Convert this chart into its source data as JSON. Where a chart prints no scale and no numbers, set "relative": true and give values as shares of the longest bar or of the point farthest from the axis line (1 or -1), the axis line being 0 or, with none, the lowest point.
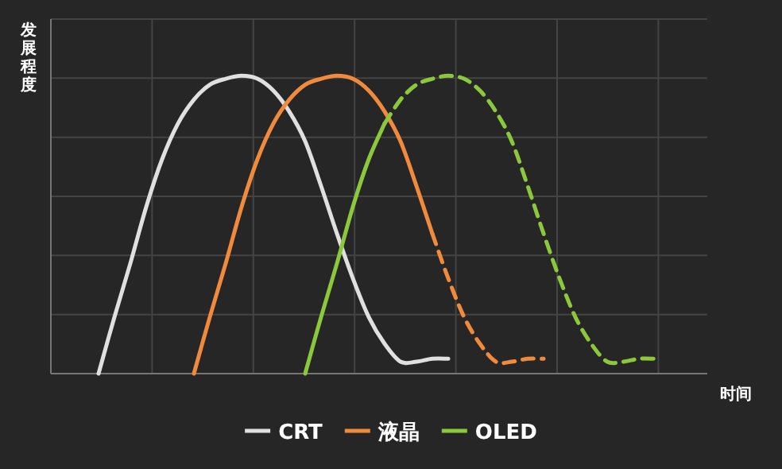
{
  "chart_data": {
    "type": "line",
    "relative": true,
    "ylabel": "发展程度",
    "xlabel": "时间",
    "grid": true,
    "legend": "bottom",
    "marker": "none",
    "categories": [
      null,
      null,
      null,
      null,
      null,
      null,
      null,
      null,
      null,
      null,
      null,
      null,
      null,
      null,
      null,
      null,
      null,
      null,
      null,
      null,
      null,
      null,
      null,
      null,
      null,
      null,
      null,
      null,
      null,
      null,
      null,
      null,
      null,
      null,
      null,
      null,
      null,
      null,
      null,
      null,
      null,
      null
    ],
    "series": [
      {
        "name": "CRT",
        "color": "#e0e0e0",
        "line_style": "solid",
        "values": [
          null,
          null,
          null,
          0,
          0.19,
          0.37,
          0.56,
          0.72,
          0.84,
          0.92,
          0.97,
          0.99,
          1,
          0.99,
          0.95,
          0.88,
          0.78,
          0.63,
          0.47,
          0.32,
          0.19,
          0.1,
          0.04,
          0.04,
          0.05,
          0.05,
          null,
          null,
          null,
          null,
          null,
          null,
          null,
          null,
          null,
          null,
          null,
          null,
          null,
          null,
          null,
          null
        ]
      },
      {
        "name": "液晶",
        "color": "#f08a3c",
        "line_style": "solid",
        "values": [
          null,
          null,
          null,
          null,
          null,
          null,
          null,
          null,
          null,
          0,
          0.19,
          0.37,
          0.56,
          0.72,
          0.84,
          0.92,
          0.97,
          0.99,
          1,
          0.99,
          0.95,
          0.88,
          0.78,
          0.63,
          0.47,
          null,
          null,
          null,
          null,
          null,
          null,
          null,
          null,
          null,
          null,
          null,
          null,
          null,
          null,
          null,
          null,
          null
        ]
      },
      {
        "color": "#f08a3c",
        "line_style": "dashed",
        "values": [
          null,
          null,
          null,
          null,
          null,
          null,
          null,
          null,
          null,
          null,
          null,
          null,
          null,
          null,
          null,
          null,
          null,
          null,
          null,
          null,
          null,
          null,
          null,
          null,
          0.47,
          0.32,
          0.19,
          0.1,
          0.04,
          0.04,
          0.05,
          0.05,
          null,
          null,
          null,
          null,
          null,
          null,
          null,
          null,
          null,
          null
        ]
      },
      {
        "name": "OLED",
        "color": "#8cc83c",
        "line_style": "solid",
        "values": [
          null,
          null,
          null,
          null,
          null,
          null,
          null,
          null,
          null,
          null,
          null,
          null,
          null,
          null,
          null,
          null,
          0,
          0.19,
          0.37,
          0.56,
          0.72,
          0.84,
          null,
          null,
          null,
          null,
          null,
          null,
          null,
          null,
          null,
          null,
          null,
          null,
          null,
          null,
          null,
          null,
          null,
          null,
          null,
          null
        ]
      },
      {
        "color": "#8cc83c",
        "line_style": "dashed",
        "values": [
          null,
          null,
          null,
          null,
          null,
          null,
          null,
          null,
          null,
          null,
          null,
          null,
          null,
          null,
          null,
          null,
          null,
          null,
          null,
          null,
          null,
          0.84,
          0.92,
          0.97,
          0.99,
          1,
          0.99,
          0.95,
          0.88,
          0.78,
          0.63,
          0.47,
          0.32,
          0.19,
          0.1,
          0.04,
          0.04,
          0.05,
          0.05,
          null,
          null,
          null
        ]
      }
    ]
  }
}
